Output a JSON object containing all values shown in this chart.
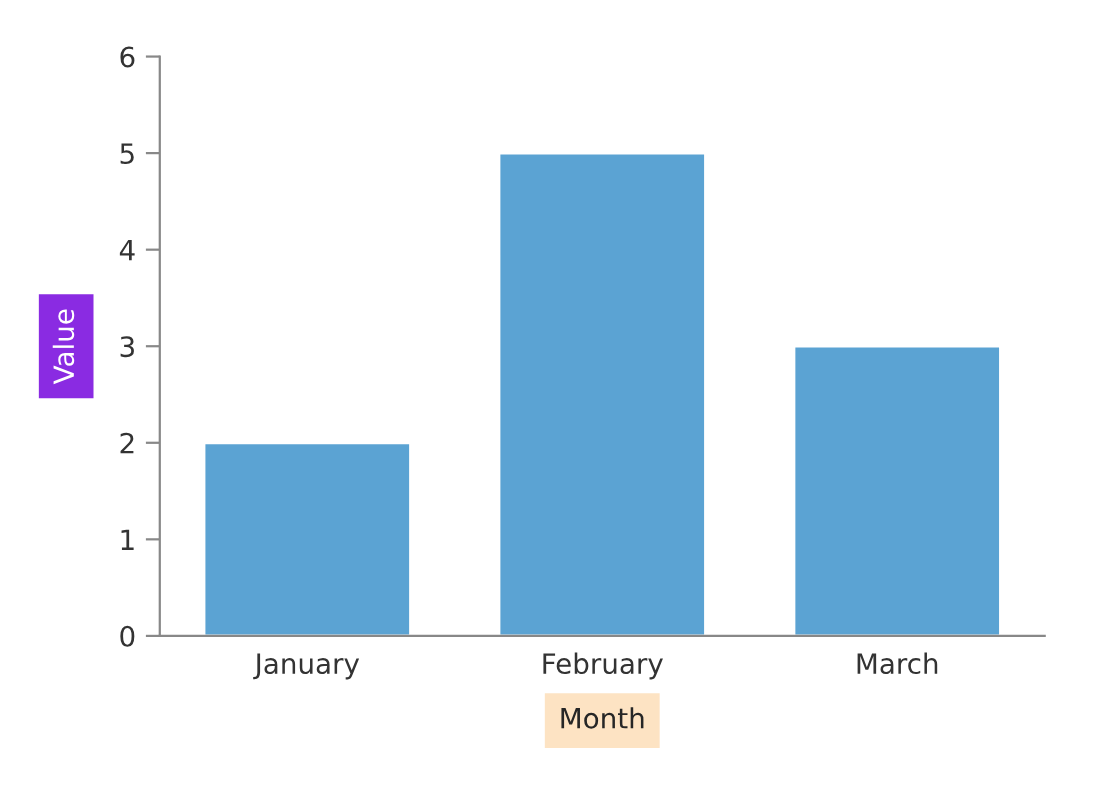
{
  "chart_data": {
    "type": "bar",
    "xlabel": "Month",
    "ylabel": "Value",
    "categories": [
      "January",
      "February",
      "March"
    ],
    "values": [
      2,
      5,
      3
    ],
    "color": "#5ba3d3",
    "ylim": [
      0,
      6
    ],
    "yticks": [
      0,
      1,
      2,
      3,
      4,
      5,
      6
    ],
    "grid": false,
    "legend": false
  }
}
